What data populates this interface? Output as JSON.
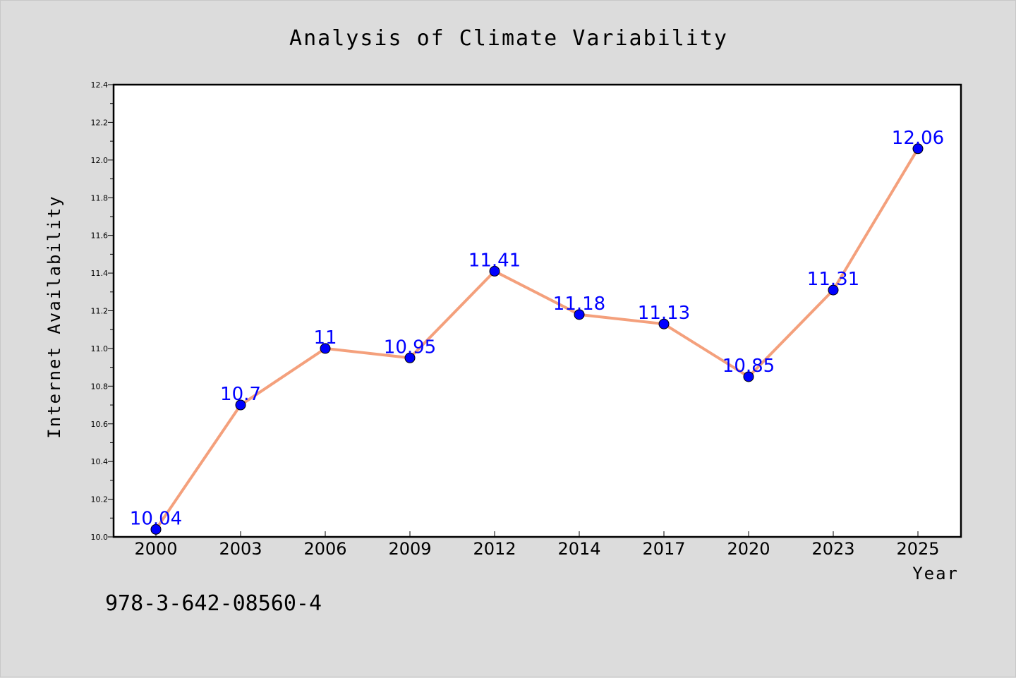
{
  "chart_data": {
    "type": "line",
    "title": "Analysis of Climate Variability",
    "xlabel": "Year",
    "ylabel": "Internet Availability",
    "categories": [
      "2000",
      "2003",
      "2006",
      "2009",
      "2012",
      "2014",
      "2017",
      "2020",
      "2023",
      "2025"
    ],
    "values": [
      10.04,
      10.7,
      11,
      10.95,
      11.41,
      11.18,
      11.13,
      10.85,
      11.31,
      12.06
    ],
    "data_labels": [
      "10.04",
      "10.7",
      "11",
      "10.95",
      "11.41",
      "11.18",
      "11.13",
      "10.85",
      "11.31",
      "12.06"
    ],
    "ylim": [
      10.0,
      12.4
    ],
    "yticks": [
      "10.0",
      "10.2",
      "10.4",
      "10.6",
      "10.8",
      "11.0",
      "11.2",
      "11.4",
      "11.6",
      "11.8",
      "12.0",
      "12.2",
      "12.4"
    ],
    "grid": false,
    "legend": "none",
    "line_color": "#f4a07c",
    "marker_color": "#0000ff",
    "label_color": "#0000ff",
    "annotation": "978-3-642-08560-4"
  }
}
